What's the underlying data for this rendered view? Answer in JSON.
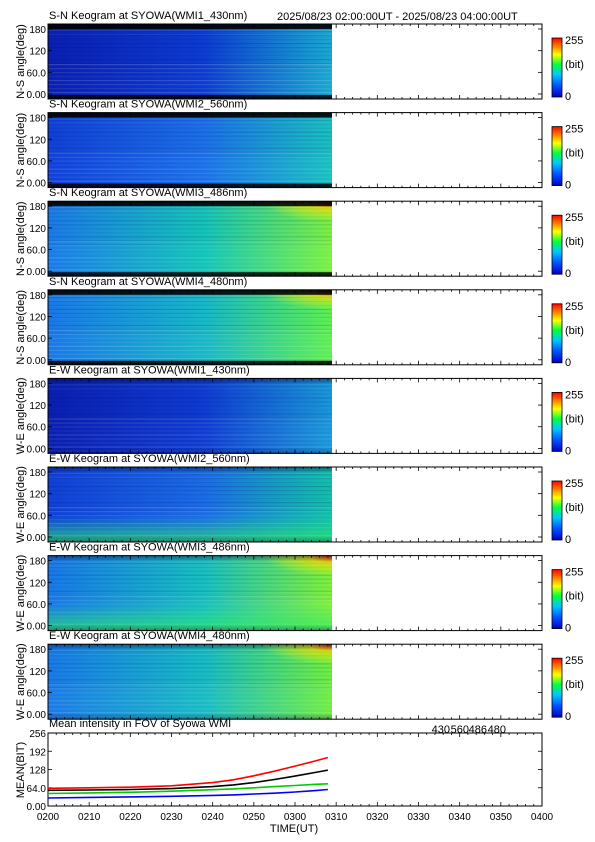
{
  "header": {
    "time_range": "2025/08/23 02:00:00UT - 2025/08/23 04:00:00UT"
  },
  "keograms": [
    {
      "title": "S-N Keogram at SYOWA(WMI1_430nm)",
      "ylabel": "N-S angle(deg)",
      "variant": "sn430"
    },
    {
      "title": "S-N Keogram at SYOWA(WMI2_560nm)",
      "ylabel": "N-S angle(deg)",
      "variant": "sn560"
    },
    {
      "title": "S-N Keogram at SYOWA(WMI3_486nm)",
      "ylabel": "N-S angle(deg)",
      "variant": "sn486"
    },
    {
      "title": "S-N Keogram at SYOWA(WMI4_480nm)",
      "ylabel": "N-S angle(deg)",
      "variant": "sn480"
    },
    {
      "title": "E-W Keogram at SYOWA(WMI1_430nm)",
      "ylabel": "W-E angle(deg)",
      "variant": "ew430"
    },
    {
      "title": "E-W Keogram at SYOWA(WMI2_560nm)",
      "ylabel": "W-E angle(deg)",
      "variant": "ew560"
    },
    {
      "title": "E-W Keogram at SYOWA(WMI3_486nm)",
      "ylabel": "W-E angle(deg)",
      "variant": "ew486"
    },
    {
      "title": "E-W Keogram at SYOWA(WMI4_480nm)",
      "ylabel": "W-E angle(deg)",
      "variant": "ew480"
    }
  ],
  "keogram_yticks": [
    "180",
    "120",
    "60.0",
    "0.00"
  ],
  "colorbar": {
    "max": "255",
    "unit": "(bit)",
    "min": "0"
  },
  "chart_data": {
    "type": "line",
    "title": "Mean intensity in FOV of Syowa WMI",
    "xlabel": "TIME(UT)",
    "ylabel": "MEAN(BIT)",
    "x_ticks": [
      "0200",
      "0210",
      "0220",
      "0230",
      "0240",
      "0250",
      "0300",
      "0310",
      "0320",
      "0330",
      "0340",
      "0350",
      "0400"
    ],
    "y_ticks": [
      "256",
      "192",
      "128",
      "64.0",
      "0.00"
    ],
    "xlim_minutes": [
      0,
      120
    ],
    "ylim": [
      0,
      256
    ],
    "x_minutes": [
      0,
      10,
      20,
      30,
      40,
      45,
      50,
      55,
      60,
      65,
      68
    ],
    "series": [
      {
        "name": "430",
        "color": "#0000ff",
        "values": [
          28,
          30,
          32,
          34,
          37,
          39,
          42,
          45,
          49,
          54,
          58
        ]
      },
      {
        "name": "560",
        "color": "#00cc00",
        "values": [
          44,
          46,
          48,
          52,
          57,
          60,
          64,
          68,
          72,
          76,
          78
        ]
      },
      {
        "name": "486",
        "color": "#ff0000",
        "values": [
          62,
          64,
          66,
          71,
          82,
          92,
          106,
          122,
          140,
          158,
          170
        ]
      },
      {
        "name": "480",
        "color": "#000000",
        "values": [
          55,
          56,
          58,
          61,
          68,
          74,
          82,
          93,
          105,
          118,
          126
        ]
      }
    ]
  }
}
